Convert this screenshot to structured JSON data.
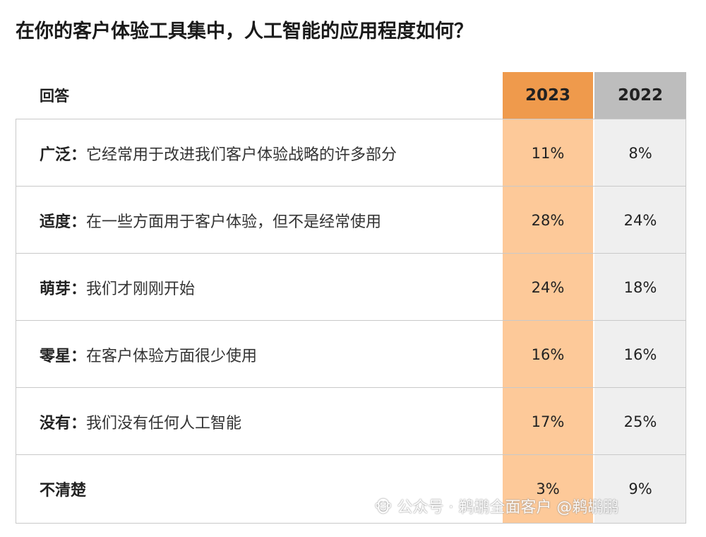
{
  "chart_data": {
    "type": "table",
    "title": "在你的客户体验工具集中，人工智能的应用程度如何？",
    "header": {
      "answer": "回答",
      "years": [
        "2023",
        "2022"
      ]
    },
    "rows": [
      {
        "category": "广泛：",
        "desc": "它经常用于改进我们客户体验战略的许多部分",
        "v2023": "11%",
        "v2022": "8%"
      },
      {
        "category": "适度：",
        "desc": "在一些方面用于客户体验，但不是经常使用",
        "v2023": "28%",
        "v2022": "24%"
      },
      {
        "category": "萌芽：",
        "desc": "我们才刚刚开始",
        "v2023": "24%",
        "v2022": "18%"
      },
      {
        "category": "零星：",
        "desc": "在客户体验方面很少使用",
        "v2023": "16%",
        "v2022": "16%"
      },
      {
        "category": "没有：",
        "desc": "我们没有任何人工智能",
        "v2023": "17%",
        "v2022": "25%"
      },
      {
        "category": "不清楚",
        "desc": "",
        "v2023": "3%",
        "v2022": "9%"
      }
    ],
    "colors": {
      "col2023_header": "#ef9a4c",
      "col2023_body": "#fdc999",
      "col2022_header": "#bdbdbd",
      "col2022_body": "#efefef"
    }
  },
  "watermark": "🐵 公众号 · 鹈鹕全面客户 @鹈鹕鹏"
}
